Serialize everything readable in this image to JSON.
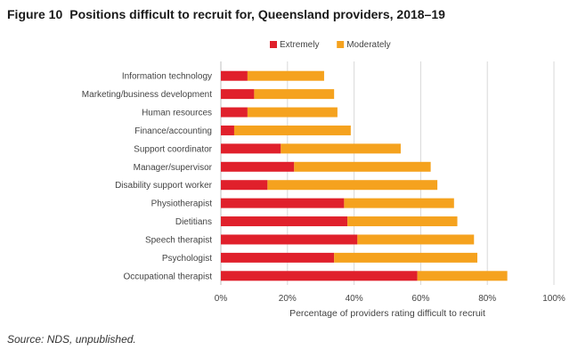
{
  "figure": {
    "label": "Figure 10",
    "title": "Positions difficult to recruit for, Queensland providers, 2018–19"
  },
  "source": "Source: NDS, unpublished.",
  "colors": {
    "extremely": "#e0202b",
    "moderately": "#f5a21e",
    "grid": "#d9d9d9",
    "text": "#444444"
  },
  "chart_data": {
    "type": "bar",
    "orientation": "horizontal",
    "stacked": true,
    "categories": [
      "Information technology",
      "Marketing/business development",
      "Human resources",
      "Finance/accounting",
      "Support coordinator",
      "Manager/supervisor",
      "Disability support worker",
      "Physiotherapist",
      "Dietitians",
      "Speech therapist",
      "Psychologist",
      "Occupational therapist"
    ],
    "series": [
      {
        "name": "Extremely",
        "values": [
          8,
          10,
          8,
          4,
          18,
          22,
          14,
          37,
          38,
          41,
          34,
          59
        ]
      },
      {
        "name": "Moderately",
        "values": [
          23,
          24,
          27,
          35,
          36,
          41,
          51,
          33,
          33,
          35,
          43,
          27
        ]
      }
    ],
    "xlabel": "Percentage of providers rating difficult to recruit",
    "ylabel": "",
    "xlim": [
      0,
      100
    ],
    "x_ticks": [
      "0%",
      "20%",
      "40%",
      "60%",
      "80%",
      "100%"
    ],
    "grid": "vertical",
    "legend_position": "top"
  }
}
